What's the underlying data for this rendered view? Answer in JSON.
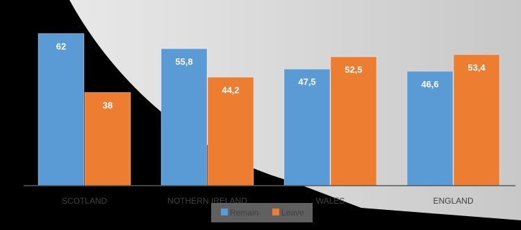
{
  "chart_data": {
    "type": "bar",
    "categories": [
      "SCOTLAND",
      "NOTHERN IRELAND",
      "WALES",
      "ENGLAND"
    ],
    "series": [
      {
        "name": "Remain",
        "values": [
          62,
          55.8,
          47.5,
          46.6
        ],
        "labels": [
          "62",
          "55,8",
          "47,5",
          "46,6"
        ]
      },
      {
        "name": "Leave",
        "values": [
          38,
          44.2,
          52.5,
          53.4
        ],
        "labels": [
          "38",
          "44,2",
          "52,5",
          "53,4"
        ]
      }
    ],
    "ylim": [
      0,
      70
    ],
    "grid": false,
    "legend_position": "bottom",
    "colors": {
      "Remain": "#5b9bd5",
      "Leave": "#ed7d31",
      "label": "#ffffff"
    }
  }
}
